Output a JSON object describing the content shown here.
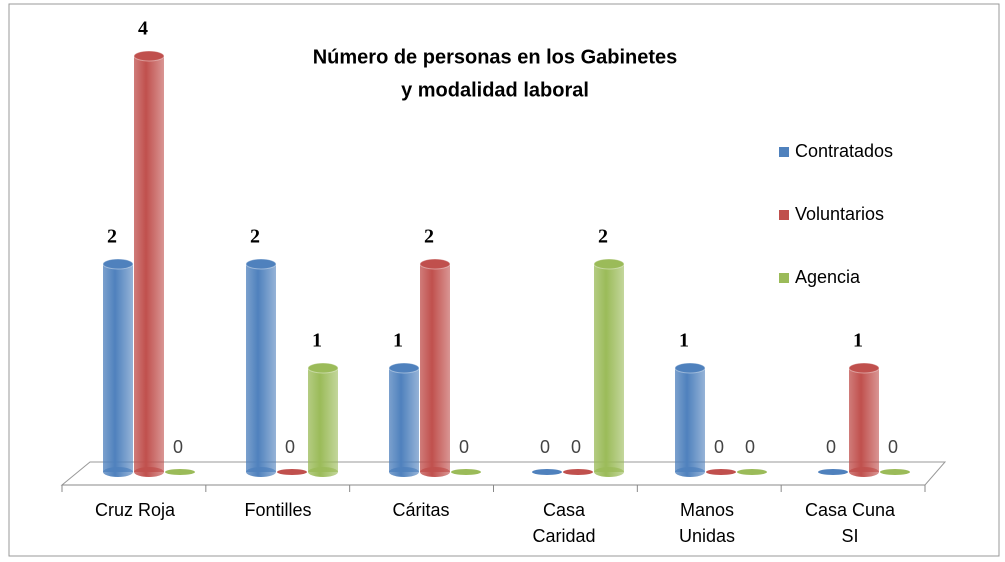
{
  "chart_data": {
    "type": "bar3d",
    "title": [
      "Número de personas en los Gabinetes",
      "y modalidad laboral"
    ],
    "categories": [
      "Cruz Roja",
      "Fontilles",
      "Cáritas",
      "Casa Caridad",
      "Manos Unidas",
      "Casa Cuna SI"
    ],
    "series": [
      {
        "name": "Contratados",
        "color": "#4f81bd",
        "values": [
          2,
          2,
          1,
          0,
          1,
          0
        ]
      },
      {
        "name": "Voluntarios",
        "color": "#c0504d",
        "values": [
          4,
          0,
          2,
          0,
          0,
          1
        ]
      },
      {
        "name": "Agencia",
        "color": "#9bbb59",
        "values": [
          0,
          1,
          0,
          2,
          0,
          0
        ]
      }
    ],
    "legend": "right"
  }
}
